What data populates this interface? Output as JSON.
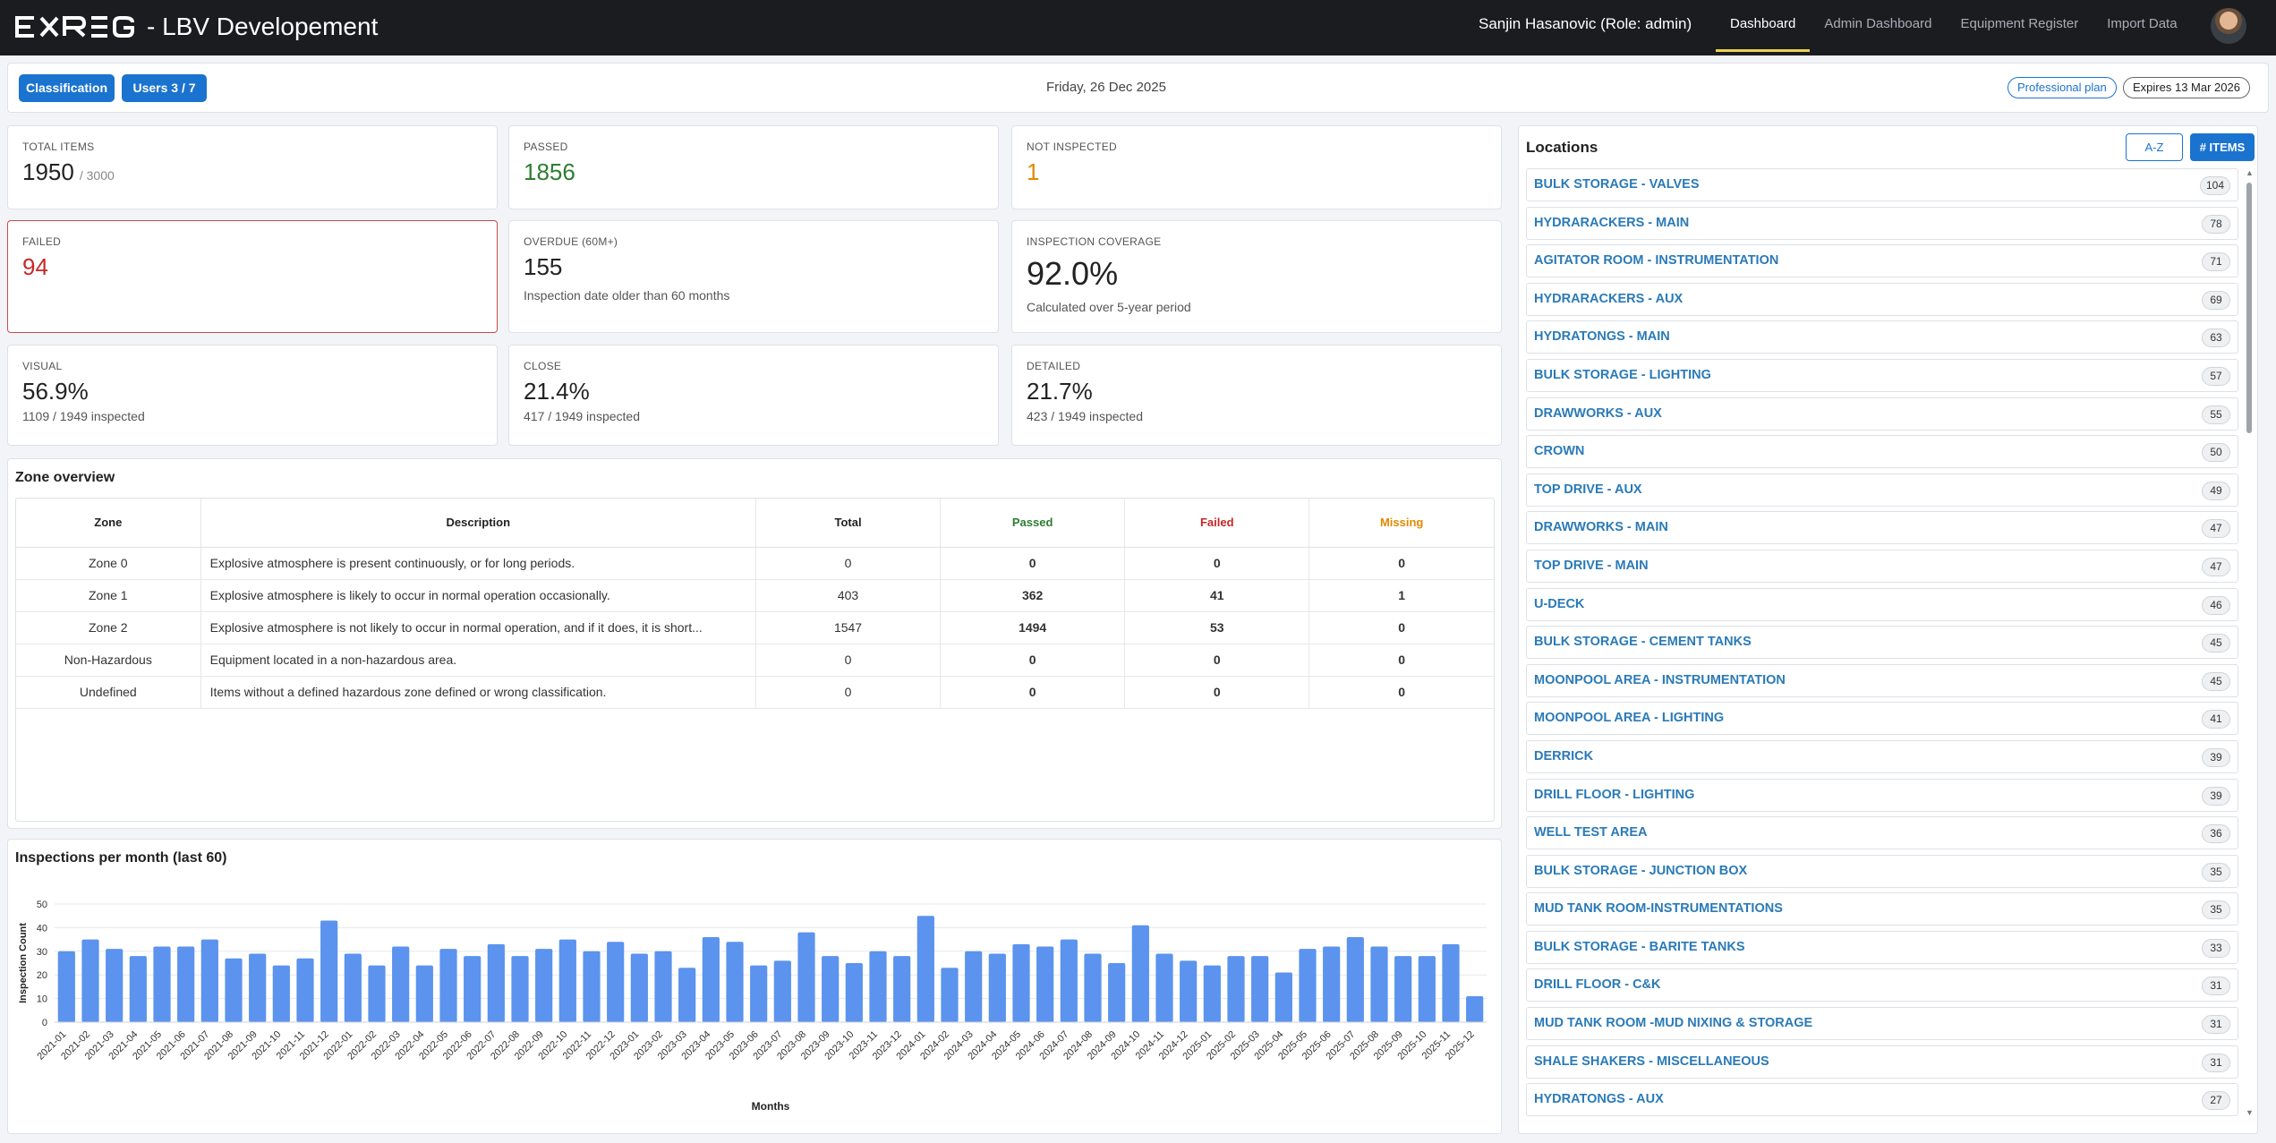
{
  "app": {
    "logo_text": "EXREG",
    "title": "- LBV Developement",
    "user": "Sanjin Hasanovic (Role: admin)",
    "nav": [
      {
        "label": "Dashboard",
        "active": true
      },
      {
        "label": "Admin Dashboard",
        "active": false
      },
      {
        "label": "Equipment Register",
        "active": false
      },
      {
        "label": "Import Data",
        "active": false
      }
    ]
  },
  "header": {
    "classification_label": "Classification",
    "users_label": "Users  3 / 7",
    "date": "Friday, 26 Dec 2025",
    "plan": "Professional plan",
    "expires": "Expires 13 Mar 2026"
  },
  "kpis": {
    "total": {
      "label": "TOTAL ITEMS",
      "value": "1950",
      "sub": "/ 3000"
    },
    "passed": {
      "label": "PASSED",
      "value": "1856"
    },
    "not_inspected": {
      "label": "NOT INSPECTED",
      "value": "1"
    },
    "failed": {
      "label": "FAILED",
      "value": "94"
    },
    "overdue": {
      "label": "OVERDUE (60M+)",
      "value": "155",
      "note": "Inspection date older than 60 months"
    },
    "coverage": {
      "label": "INSPECTION COVERAGE",
      "value": "92.0%",
      "note": "Calculated over 5-year period"
    },
    "visual": {
      "label": "VISUAL",
      "value": "56.9%",
      "note": "1109 / 1949 inspected"
    },
    "close": {
      "label": "CLOSE",
      "value": "21.4%",
      "note": "417 / 1949 inspected"
    },
    "detailed": {
      "label": "DETAILED",
      "value": "21.7%",
      "note": "423 / 1949 inspected"
    }
  },
  "zones": {
    "title": "Zone overview",
    "headers": [
      "Zone",
      "Description",
      "Total",
      "Passed",
      "Failed",
      "Missing"
    ],
    "rows": [
      {
        "zone": "Zone 0",
        "description": "Explosive atmosphere is present continuously, or for long periods.",
        "total": "0",
        "passed": "0",
        "failed": "0",
        "missing": "0"
      },
      {
        "zone": "Zone 1",
        "description": "Explosive atmosphere is likely to occur in normal operation occasionally.",
        "total": "403",
        "passed": "362",
        "failed": "41",
        "missing": "1"
      },
      {
        "zone": "Zone 2",
        "description": "Explosive atmosphere is not likely to occur in normal operation, and if it does, it is short...",
        "total": "1547",
        "passed": "1494",
        "failed": "53",
        "missing": "0"
      },
      {
        "zone": "Non-Hazardous",
        "description": "Equipment located in a non-hazardous area.",
        "total": "0",
        "passed": "0",
        "failed": "0",
        "missing": "0"
      },
      {
        "zone": "Undefined",
        "description": "Items without a defined hazardous zone defined or wrong classification.",
        "total": "0",
        "passed": "0",
        "failed": "0",
        "missing": "0"
      }
    ]
  },
  "chart_data": {
    "type": "bar",
    "title": "Inspections per month (last 60)",
    "xlabel": "Months",
    "ylabel": "Inspection Count",
    "ylim": [
      0,
      50
    ],
    "yticks": [
      0,
      10,
      20,
      30,
      40,
      50
    ],
    "grid": true,
    "bar_color": "#5b93ee",
    "categories": [
      "2021-01",
      "2021-02",
      "2021-03",
      "2021-04",
      "2021-05",
      "2021-06",
      "2021-07",
      "2021-08",
      "2021-09",
      "2021-10",
      "2021-11",
      "2021-12",
      "2022-01",
      "2022-02",
      "2022-03",
      "2022-04",
      "2022-05",
      "2022-06",
      "2022-07",
      "2022-08",
      "2022-09",
      "2022-10",
      "2022-11",
      "2022-12",
      "2023-01",
      "2023-02",
      "2023-03",
      "2023-04",
      "2023-05",
      "2023-06",
      "2023-07",
      "2023-08",
      "2023-09",
      "2023-10",
      "2023-11",
      "2023-12",
      "2024-01",
      "2024-02",
      "2024-03",
      "2024-04",
      "2024-05",
      "2024-06",
      "2024-07",
      "2024-08",
      "2024-09",
      "2024-10",
      "2024-11",
      "2024-12",
      "2025-01",
      "2025-02",
      "2025-03",
      "2025-04",
      "2025-05",
      "2025-06",
      "2025-07",
      "2025-08",
      "2025-09",
      "2025-10",
      "2025-11",
      "2025-12"
    ],
    "values": [
      30,
      35,
      31,
      28,
      32,
      32,
      35,
      27,
      29,
      24,
      27,
      43,
      29,
      24,
      32,
      24,
      31,
      28,
      33,
      28,
      31,
      35,
      30,
      34,
      29,
      30,
      23,
      36,
      34,
      24,
      26,
      38,
      28,
      25,
      30,
      28,
      45,
      23,
      30,
      29,
      33,
      32,
      35,
      29,
      25,
      41,
      29,
      26,
      24,
      28,
      28,
      21,
      31,
      32,
      36,
      32,
      28,
      28,
      33,
      11
    ]
  },
  "locations": {
    "title": "Locations",
    "sort_az": "A-Z",
    "sort_items": "# ITEMS",
    "items": [
      {
        "name": "BULK STORAGE - VALVES",
        "count": "104"
      },
      {
        "name": "HYDRARACKERS - MAIN",
        "count": "78"
      },
      {
        "name": "AGITATOR ROOM - INSTRUMENTATION",
        "count": "71"
      },
      {
        "name": "HYDRARACKERS - AUX",
        "count": "69"
      },
      {
        "name": "HYDRATONGS - MAIN",
        "count": "63"
      },
      {
        "name": "BULK STORAGE - LIGHTING",
        "count": "57"
      },
      {
        "name": "DRAWWORKS - AUX",
        "count": "55"
      },
      {
        "name": "CROWN",
        "count": "50"
      },
      {
        "name": "TOP DRIVE - AUX",
        "count": "49"
      },
      {
        "name": "DRAWWORKS - MAIN",
        "count": "47"
      },
      {
        "name": "TOP DRIVE - MAIN",
        "count": "47"
      },
      {
        "name": "U-DECK",
        "count": "46"
      },
      {
        "name": "BULK STORAGE - CEMENT TANKS",
        "count": "45"
      },
      {
        "name": "MOONPOOL AREA - INSTRUMENTATION",
        "count": "45"
      },
      {
        "name": "MOONPOOL AREA - LIGHTING",
        "count": "41"
      },
      {
        "name": "DERRICK",
        "count": "39"
      },
      {
        "name": "DRILL FLOOR - LIGHTING",
        "count": "39"
      },
      {
        "name": "WELL TEST AREA",
        "count": "36"
      },
      {
        "name": "BULK STORAGE - JUNCTION BOX",
        "count": "35"
      },
      {
        "name": "MUD TANK ROOM-INSTRUMENTATIONS",
        "count": "35"
      },
      {
        "name": "BULK STORAGE - BARITE TANKS",
        "count": "33"
      },
      {
        "name": "DRILL FLOOR - C&K",
        "count": "31"
      },
      {
        "name": "MUD TANK ROOM -MUD NIXING & STORAGE",
        "count": "31"
      },
      {
        "name": "SHALE SHAKERS - MISCELLANEOUS",
        "count": "31"
      },
      {
        "name": "HYDRATONGS - AUX",
        "count": "27"
      }
    ]
  }
}
